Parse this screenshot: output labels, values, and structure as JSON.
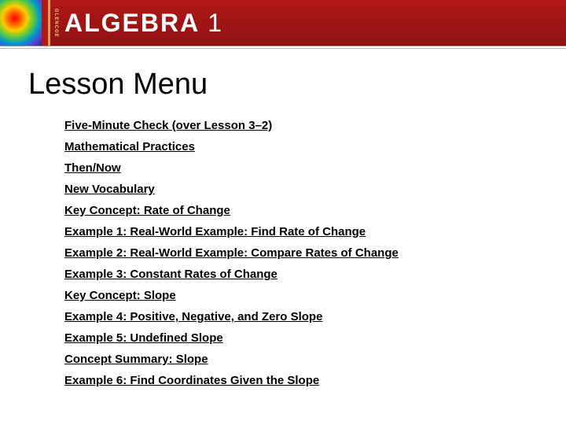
{
  "header": {
    "publisher_vertical": "GLENCOE",
    "title_main": "ALGEBRA",
    "title_num": "1",
    "bar_color": "#8e1212",
    "accent_color": "#d4a84a"
  },
  "page": {
    "title": "Lesson Menu",
    "title_fontsize": 38,
    "title_color": "#000000",
    "link_fontsize": 15,
    "link_color": "#000000",
    "background_color": "#ffffff"
  },
  "menu": {
    "items": [
      {
        "label": "Five-Minute Check (over Lesson 3–2)"
      },
      {
        "label": "Mathematical Practices"
      },
      {
        "label": "Then/Now"
      },
      {
        "label": "New Vocabulary"
      },
      {
        "label": "Key Concept: Rate of Change"
      },
      {
        "label": "Example 1: Real-World Example: Find Rate of Change"
      },
      {
        "label": "Example 2: Real-World Example: Compare Rates of Change"
      },
      {
        "label": "Example 3: Constant Rates of Change"
      },
      {
        "label": "Key Concept: Slope"
      },
      {
        "label": "Example 4: Positive, Negative, and Zero Slope"
      },
      {
        "label": "Example 5: Undefined Slope"
      },
      {
        "label": "Concept Summary: Slope"
      },
      {
        "label": "Example 6: Find Coordinates Given the Slope"
      }
    ]
  }
}
